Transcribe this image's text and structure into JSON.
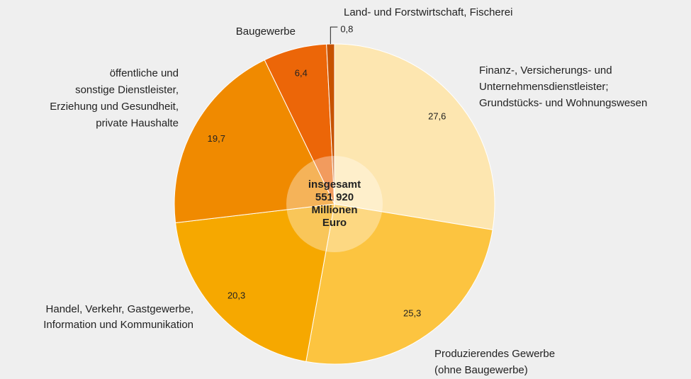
{
  "chart_data": {
    "type": "pie",
    "categories": [
      [
        "Finanz-, Versicherungs- und",
        "Unternehmensdienstleister;",
        "Grundstücks- und Wohnungswesen"
      ],
      [
        "Produzierendes Gewerbe",
        "(ohne Baugewerbe)"
      ],
      [
        "Handel, Verkehr, Gastgewerbe,",
        "Information und Kommunikation"
      ],
      [
        "öffentliche und",
        "sonstige Dienstleister,",
        "Erziehung und Gesundheit,",
        "private Haushalte"
      ],
      [
        "Baugewerbe"
      ],
      [
        "Land- und Forstwirtschaft, Fischerei"
      ]
    ],
    "values": [
      27.6,
      25.3,
      20.3,
      19.7,
      6.4,
      0.8
    ],
    "value_labels": [
      "27,6",
      "25,3",
      "20,3",
      "19,7",
      "6,4",
      "0,8"
    ],
    "colors": [
      "#fde6b0",
      "#fcc440",
      "#f6a800",
      "#f08a00",
      "#ec6608",
      "#c75300"
    ],
    "center_label": [
      "insgesamt",
      "551 920",
      "Millionen",
      "Euro"
    ]
  }
}
